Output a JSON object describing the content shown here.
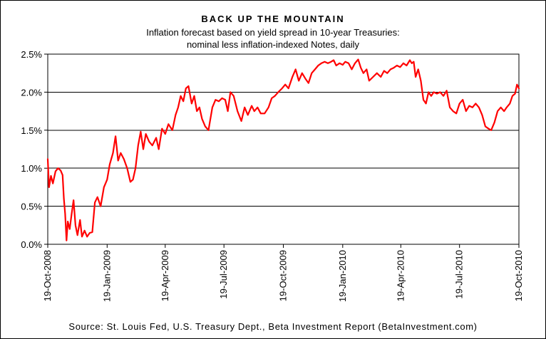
{
  "chart": {
    "title": "BACK UP THE MOUNTAIN",
    "subtitle_line1": "Inflation forecast based on yield spread in 10-year Treasuries:",
    "subtitle_line2": "nominal less inflation-indexed Notes, daily",
    "source": "Source: St. Louis Fed, U.S. Treasury Dept., Beta Investment Report (BetaInvestment.com)"
  },
  "colors": {
    "line": "#ff0000",
    "grid": "#000000",
    "background": "#ffffff"
  },
  "chart_data": {
    "type": "line",
    "title": "BACK UP THE MOUNTAIN",
    "subtitle": "Inflation forecast based on yield spread in 10-year Treasuries: nominal less inflation-indexed Notes, daily",
    "xlabel": "",
    "ylabel": "",
    "ylim": [
      0,
      2.5
    ],
    "yticks": [
      "0.0%",
      "0.5%",
      "1.0%",
      "1.5%",
      "2.0%",
      "2.5%"
    ],
    "xticks": [
      "19-Oct-2008",
      "19-Jan-2009",
      "19-Apr-2009",
      "19-Jul-2009",
      "19-Oct-2009",
      "19-Jan-2010",
      "19-Apr-2010",
      "19-Jul-2010",
      "19-Oct-2010"
    ],
    "grid": "horizontal",
    "legend": "none",
    "series": [
      {
        "values": [
          [
            "2008-10-19",
            1.12
          ],
          [
            "2008-10-21",
            0.75
          ],
          [
            "2008-10-24",
            0.9
          ],
          [
            "2008-10-27",
            0.8
          ],
          [
            "2008-10-31",
            0.96
          ],
          [
            "2008-11-04",
            1.0
          ],
          [
            "2008-11-08",
            0.97
          ],
          [
            "2008-11-11",
            0.91
          ],
          [
            "2008-11-13",
            0.6
          ],
          [
            "2008-11-15",
            0.4
          ],
          [
            "2008-11-17",
            0.05
          ],
          [
            "2008-11-19",
            0.3
          ],
          [
            "2008-11-22",
            0.2
          ],
          [
            "2008-11-25",
            0.4
          ],
          [
            "2008-11-28",
            0.58
          ],
          [
            "2008-12-01",
            0.25
          ],
          [
            "2008-12-04",
            0.12
          ],
          [
            "2008-12-08",
            0.32
          ],
          [
            "2008-12-11",
            0.1
          ],
          [
            "2008-12-15",
            0.18
          ],
          [
            "2008-12-19",
            0.1
          ],
          [
            "2008-12-23",
            0.15
          ],
          [
            "2008-12-27",
            0.16
          ],
          [
            "2008-12-31",
            0.55
          ],
          [
            "2009-01-04",
            0.62
          ],
          [
            "2009-01-09",
            0.5
          ],
          [
            "2009-01-14",
            0.75
          ],
          [
            "2009-01-19",
            0.85
          ],
          [
            "2009-01-23",
            1.05
          ],
          [
            "2009-01-28",
            1.2
          ],
          [
            "2009-02-01",
            1.42
          ],
          [
            "2009-02-05",
            1.1
          ],
          [
            "2009-02-09",
            1.2
          ],
          [
            "2009-02-14",
            1.12
          ],
          [
            "2009-02-19",
            1.0
          ],
          [
            "2009-02-24",
            0.82
          ],
          [
            "2009-02-28",
            0.85
          ],
          [
            "2009-03-04",
            1.0
          ],
          [
            "2009-03-08",
            1.3
          ],
          [
            "2009-03-12",
            1.48
          ],
          [
            "2009-03-16",
            1.25
          ],
          [
            "2009-03-20",
            1.45
          ],
          [
            "2009-03-25",
            1.35
          ],
          [
            "2009-03-30",
            1.3
          ],
          [
            "2009-04-05",
            1.4
          ],
          [
            "2009-04-09",
            1.25
          ],
          [
            "2009-04-14",
            1.52
          ],
          [
            "2009-04-19",
            1.45
          ],
          [
            "2009-04-24",
            1.58
          ],
          [
            "2009-04-30",
            1.5
          ],
          [
            "2009-05-05",
            1.7
          ],
          [
            "2009-05-09",
            1.8
          ],
          [
            "2009-05-13",
            1.95
          ],
          [
            "2009-05-17",
            1.88
          ],
          [
            "2009-05-21",
            2.05
          ],
          [
            "2009-05-25",
            2.08
          ],
          [
            "2009-05-30",
            1.85
          ],
          [
            "2009-06-03",
            1.95
          ],
          [
            "2009-06-07",
            1.75
          ],
          [
            "2009-06-11",
            1.8
          ],
          [
            "2009-06-15",
            1.65
          ],
          [
            "2009-06-20",
            1.55
          ],
          [
            "2009-06-25",
            1.5
          ],
          [
            "2009-07-01",
            1.8
          ],
          [
            "2009-07-06",
            1.9
          ],
          [
            "2009-07-11",
            1.88
          ],
          [
            "2009-07-16",
            1.92
          ],
          [
            "2009-07-21",
            1.9
          ],
          [
            "2009-07-25",
            1.75
          ],
          [
            "2009-07-29",
            2.0
          ],
          [
            "2009-08-03",
            1.95
          ],
          [
            "2009-08-09",
            1.75
          ],
          [
            "2009-08-15",
            1.62
          ],
          [
            "2009-08-20",
            1.8
          ],
          [
            "2009-08-25",
            1.7
          ],
          [
            "2009-08-31",
            1.82
          ],
          [
            "2009-09-04",
            1.75
          ],
          [
            "2009-09-09",
            1.8
          ],
          [
            "2009-09-14",
            1.72
          ],
          [
            "2009-09-20",
            1.72
          ],
          [
            "2009-09-26",
            1.8
          ],
          [
            "2009-10-01",
            1.92
          ],
          [
            "2009-10-06",
            1.95
          ],
          [
            "2009-10-11",
            2.0
          ],
          [
            "2009-10-17",
            2.05
          ],
          [
            "2009-10-22",
            2.1
          ],
          [
            "2009-10-27",
            2.05
          ],
          [
            "2009-11-02",
            2.2
          ],
          [
            "2009-11-07",
            2.3
          ],
          [
            "2009-11-12",
            2.15
          ],
          [
            "2009-11-17",
            2.25
          ],
          [
            "2009-11-22",
            2.18
          ],
          [
            "2009-11-27",
            2.12
          ],
          [
            "2009-12-02",
            2.25
          ],
          [
            "2009-12-07",
            2.3
          ],
          [
            "2009-12-12",
            2.35
          ],
          [
            "2009-12-17",
            2.38
          ],
          [
            "2009-12-22",
            2.4
          ],
          [
            "2009-12-27",
            2.38
          ],
          [
            "2010-01-01",
            2.4
          ],
          [
            "2010-01-05",
            2.42
          ],
          [
            "2010-01-09",
            2.35
          ],
          [
            "2010-01-14",
            2.38
          ],
          [
            "2010-01-19",
            2.36
          ],
          [
            "2010-01-23",
            2.4
          ],
          [
            "2010-01-28",
            2.38
          ],
          [
            "2010-02-02",
            2.3
          ],
          [
            "2010-02-07",
            2.38
          ],
          [
            "2010-02-12",
            2.43
          ],
          [
            "2010-02-16",
            2.32
          ],
          [
            "2010-02-20",
            2.25
          ],
          [
            "2010-02-25",
            2.3
          ],
          [
            "2010-03-01",
            2.15
          ],
          [
            "2010-03-07",
            2.2
          ],
          [
            "2010-03-13",
            2.25
          ],
          [
            "2010-03-19",
            2.2
          ],
          [
            "2010-03-24",
            2.28
          ],
          [
            "2010-03-29",
            2.25
          ],
          [
            "2010-04-03",
            2.3
          ],
          [
            "2010-04-08",
            2.32
          ],
          [
            "2010-04-13",
            2.35
          ],
          [
            "2010-04-18",
            2.33
          ],
          [
            "2010-04-23",
            2.38
          ],
          [
            "2010-04-28",
            2.35
          ],
          [
            "2010-05-03",
            2.42
          ],
          [
            "2010-05-06",
            2.38
          ],
          [
            "2010-05-09",
            2.4
          ],
          [
            "2010-05-12",
            2.2
          ],
          [
            "2010-05-16",
            2.3
          ],
          [
            "2010-05-20",
            2.15
          ],
          [
            "2010-05-24",
            1.9
          ],
          [
            "2010-05-28",
            1.85
          ],
          [
            "2010-06-01",
            2.0
          ],
          [
            "2010-06-05",
            1.95
          ],
          [
            "2010-06-09",
            2.0
          ],
          [
            "2010-06-14",
            1.98
          ],
          [
            "2010-06-19",
            2.0
          ],
          [
            "2010-06-24",
            1.95
          ],
          [
            "2010-06-29",
            2.02
          ],
          [
            "2010-07-04",
            1.8
          ],
          [
            "2010-07-09",
            1.75
          ],
          [
            "2010-07-14",
            1.72
          ],
          [
            "2010-07-19",
            1.85
          ],
          [
            "2010-07-24",
            1.9
          ],
          [
            "2010-07-29",
            1.75
          ],
          [
            "2010-08-03",
            1.82
          ],
          [
            "2010-08-08",
            1.8
          ],
          [
            "2010-08-13",
            1.85
          ],
          [
            "2010-08-18",
            1.8
          ],
          [
            "2010-08-23",
            1.7
          ],
          [
            "2010-08-28",
            1.55
          ],
          [
            "2010-09-02",
            1.52
          ],
          [
            "2010-09-06",
            1.5
          ],
          [
            "2010-09-11",
            1.6
          ],
          [
            "2010-09-16",
            1.75
          ],
          [
            "2010-09-21",
            1.8
          ],
          [
            "2010-09-26",
            1.75
          ],
          [
            "2010-09-30",
            1.8
          ],
          [
            "2010-10-05",
            1.85
          ],
          [
            "2010-10-09",
            1.95
          ],
          [
            "2010-10-13",
            1.98
          ],
          [
            "2010-10-16",
            2.1
          ],
          [
            "2010-10-19",
            2.05
          ]
        ]
      }
    ]
  }
}
